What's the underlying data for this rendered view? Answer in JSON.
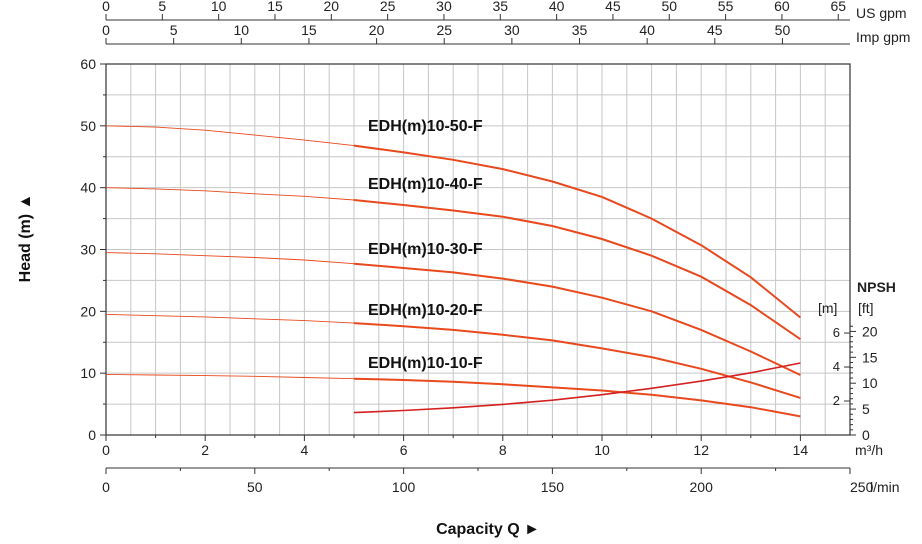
{
  "chart_data": {
    "type": "line",
    "ylabel": "Head (m) ▲",
    "xlabel": "Capacity Q ►",
    "xlim": [
      0,
      15
    ],
    "ylim": [
      0,
      60
    ],
    "grid": true,
    "x_ticks": [
      0,
      2,
      4,
      6,
      8,
      10,
      12,
      14
    ],
    "y_ticks": [
      0,
      10,
      20,
      30,
      40,
      50,
      60
    ],
    "x_unit": "m³/h",
    "top_axes": [
      {
        "unit": "US gpm",
        "ticks": [
          0,
          5,
          10,
          15,
          20,
          25,
          30,
          35,
          40,
          45,
          50,
          55,
          60,
          65
        ],
        "m3h_per_unit": 0.227125
      },
      {
        "unit": "Imp gpm",
        "ticks": [
          0,
          5,
          10,
          15,
          20,
          25,
          30,
          35,
          40,
          45,
          50
        ],
        "m3h_per_unit": 0.272765
      }
    ],
    "bottom_axis": {
      "unit": "l/min",
      "ticks": [
        0,
        50,
        100,
        150,
        200,
        250
      ],
      "m3h_per_unit": 0.06
    },
    "npsh_axis": {
      "title": "NPSH",
      "m_unit": "[m]",
      "ft_unit": "[ft]",
      "m_ticks": [
        2,
        4,
        6
      ],
      "ft_ticks": [
        0,
        5,
        10,
        15,
        20
      ],
      "m_range": [
        0,
        6.65
      ]
    },
    "series": [
      {
        "name": "EDH(m)10-50-F",
        "color": "#e8491d",
        "x": [
          0,
          1,
          2,
          3,
          4,
          5,
          6,
          7,
          8,
          9,
          10,
          11,
          12,
          13,
          14
        ],
        "values": [
          50,
          49.8,
          49.3,
          48.5,
          47.7,
          46.8,
          45.7,
          44.5,
          43,
          41,
          38.5,
          35,
          30.7,
          25.5,
          19
        ]
      },
      {
        "name": "EDH(m)10-40-F",
        "color": "#e8491d",
        "x": [
          0,
          1,
          2,
          3,
          4,
          5,
          6,
          7,
          8,
          9,
          10,
          11,
          12,
          13,
          14
        ],
        "values": [
          40,
          39.8,
          39.5,
          39,
          38.6,
          38,
          37.2,
          36.3,
          35.3,
          33.8,
          31.7,
          29,
          25.6,
          21,
          15.5
        ]
      },
      {
        "name": "EDH(m)10-30-F",
        "color": "#e8491d",
        "x": [
          0,
          1,
          2,
          3,
          4,
          5,
          6,
          7,
          8,
          9,
          10,
          11,
          12,
          13,
          14
        ],
        "values": [
          29.5,
          29.3,
          29,
          28.7,
          28.3,
          27.7,
          27,
          26.3,
          25.3,
          24,
          22.2,
          20,
          17,
          13.5,
          9.7
        ]
      },
      {
        "name": "EDH(m)10-20-F",
        "color": "#e8491d",
        "x": [
          0,
          1,
          2,
          3,
          4,
          5,
          6,
          7,
          8,
          9,
          10,
          11,
          12,
          13,
          14
        ],
        "values": [
          19.5,
          19.3,
          19.1,
          18.8,
          18.5,
          18.1,
          17.6,
          17,
          16.2,
          15.3,
          14,
          12.6,
          10.7,
          8.5,
          6
        ]
      },
      {
        "name": "EDH(m)10-10-F",
        "color": "#e8491d",
        "x": [
          0,
          1,
          2,
          3,
          4,
          5,
          6,
          7,
          8,
          9,
          10,
          11,
          12,
          13,
          14
        ],
        "values": [
          9.8,
          9.7,
          9.6,
          9.5,
          9.3,
          9.1,
          8.9,
          8.6,
          8.2,
          7.7,
          7.2,
          6.5,
          5.6,
          4.5,
          3
        ]
      },
      {
        "name": "",
        "axis": "npsh",
        "color": "#d42020",
        "x": [
          5,
          6,
          7,
          8,
          9,
          10,
          11,
          12,
          13,
          14
        ],
        "values": [
          1.32,
          1.44,
          1.6,
          1.8,
          2.05,
          2.37,
          2.75,
          3.17,
          3.66,
          4.24
        ]
      }
    ]
  }
}
